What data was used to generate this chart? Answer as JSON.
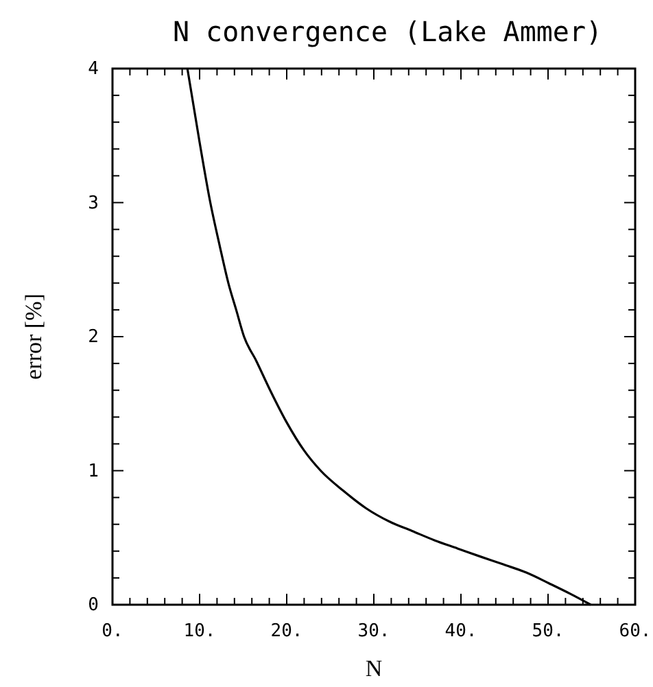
{
  "chart_data": {
    "type": "line",
    "title": "N convergence (Lake Ammer)",
    "xlabel": "N",
    "ylabel": "error [%]",
    "xlim": [
      0,
      60
    ],
    "ylim": [
      0,
      4
    ],
    "xticks": [
      {
        "value": 0,
        "label": "0."
      },
      {
        "value": 10,
        "label": "10."
      },
      {
        "value": 20,
        "label": "20."
      },
      {
        "value": 30,
        "label": "30."
      },
      {
        "value": 40,
        "label": "40."
      },
      {
        "value": 50,
        "label": "50."
      },
      {
        "value": 60,
        "label": "60."
      }
    ],
    "yticks": [
      0,
      1,
      2,
      3,
      4
    ],
    "series": [
      {
        "color": "#000000",
        "x": [
          8.6,
          10,
          11.2,
          12.3,
          13.3,
          14.2,
          15.1,
          16.5,
          18.1,
          20.0,
          22.0,
          23.9,
          26.5,
          29.1,
          31.8,
          34.4,
          37.0,
          39.6,
          42.2,
          44.9,
          47.5,
          50.1,
          52.6,
          54.9
        ],
        "values": [
          4,
          3.45,
          3.01,
          2.68,
          2.4,
          2.2,
          2.0,
          1.82,
          1.6,
          1.36,
          1.15,
          1.0,
          0.85,
          0.72,
          0.62,
          0.55,
          0.48,
          0.42,
          0.36,
          0.3,
          0.24,
          0.16,
          0.08,
          0
        ]
      }
    ]
  }
}
